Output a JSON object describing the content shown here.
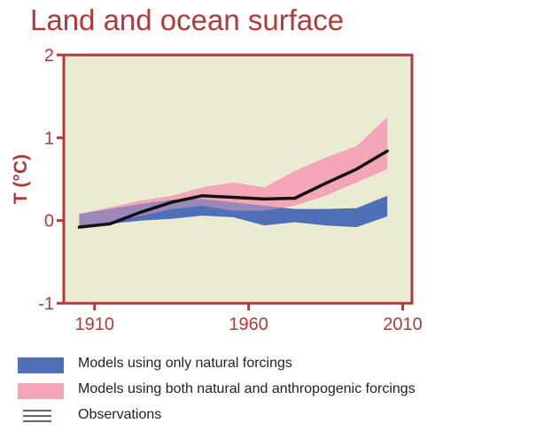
{
  "chart_data": {
    "type": "area",
    "title": "Land and ocean surface",
    "ylabel": "T (°C)",
    "xlabel": "",
    "xlim": [
      1900,
      2013
    ],
    "ylim": [
      -1,
      2
    ],
    "x_ticks": [
      1910,
      1960,
      2010
    ],
    "y_ticks": [
      -1,
      0,
      1,
      2
    ],
    "grid": false,
    "legend_position": "bottom",
    "series": [
      {
        "name": "Models using only natural forcings",
        "kind": "band",
        "color": "#4f6fb8",
        "x": [
          1905,
          1915,
          1925,
          1935,
          1945,
          1955,
          1965,
          1975,
          1985,
          1995,
          2005
        ],
        "upper": [
          0.08,
          0.14,
          0.2,
          0.25,
          0.26,
          0.22,
          0.18,
          0.14,
          0.14,
          0.15,
          0.3
        ],
        "lower": [
          -0.08,
          -0.04,
          0.0,
          0.02,
          0.06,
          0.04,
          -0.06,
          -0.02,
          -0.06,
          -0.08,
          0.05
        ]
      },
      {
        "name": "Models using both natural and anthropogenic forcings",
        "kind": "band",
        "color": "#f4a6b8",
        "x": [
          1905,
          1915,
          1925,
          1935,
          1945,
          1955,
          1965,
          1975,
          1985,
          1995,
          2005
        ],
        "upper": [
          0.08,
          0.16,
          0.24,
          0.3,
          0.4,
          0.46,
          0.4,
          0.6,
          0.76,
          0.9,
          1.25
        ],
        "lower": [
          -0.08,
          -0.02,
          0.06,
          0.14,
          0.18,
          0.12,
          0.12,
          0.18,
          0.3,
          0.46,
          0.62
        ]
      },
      {
        "name": "Observations",
        "kind": "line",
        "color": "#111111",
        "x": [
          1905,
          1915,
          1925,
          1935,
          1945,
          1955,
          1965,
          1975,
          1985,
          1995,
          2005
        ],
        "y": [
          -0.08,
          -0.04,
          0.1,
          0.22,
          0.3,
          0.28,
          0.26,
          0.27,
          0.45,
          0.62,
          0.84
        ]
      }
    ]
  },
  "legend": {
    "items": [
      {
        "label": "Models using only natural forcings",
        "swatch": "box",
        "color": "#4f6fb8"
      },
      {
        "label": "Models using both natural and anthropogenic forcings",
        "swatch": "box",
        "color": "#f4a6b8"
      },
      {
        "label": "Observations",
        "swatch": "lines",
        "color": "#666666"
      }
    ]
  },
  "colors": {
    "accent": "#b03a3a",
    "plot_background": "#e9ecd0",
    "overlap": "#9a88b8"
  }
}
